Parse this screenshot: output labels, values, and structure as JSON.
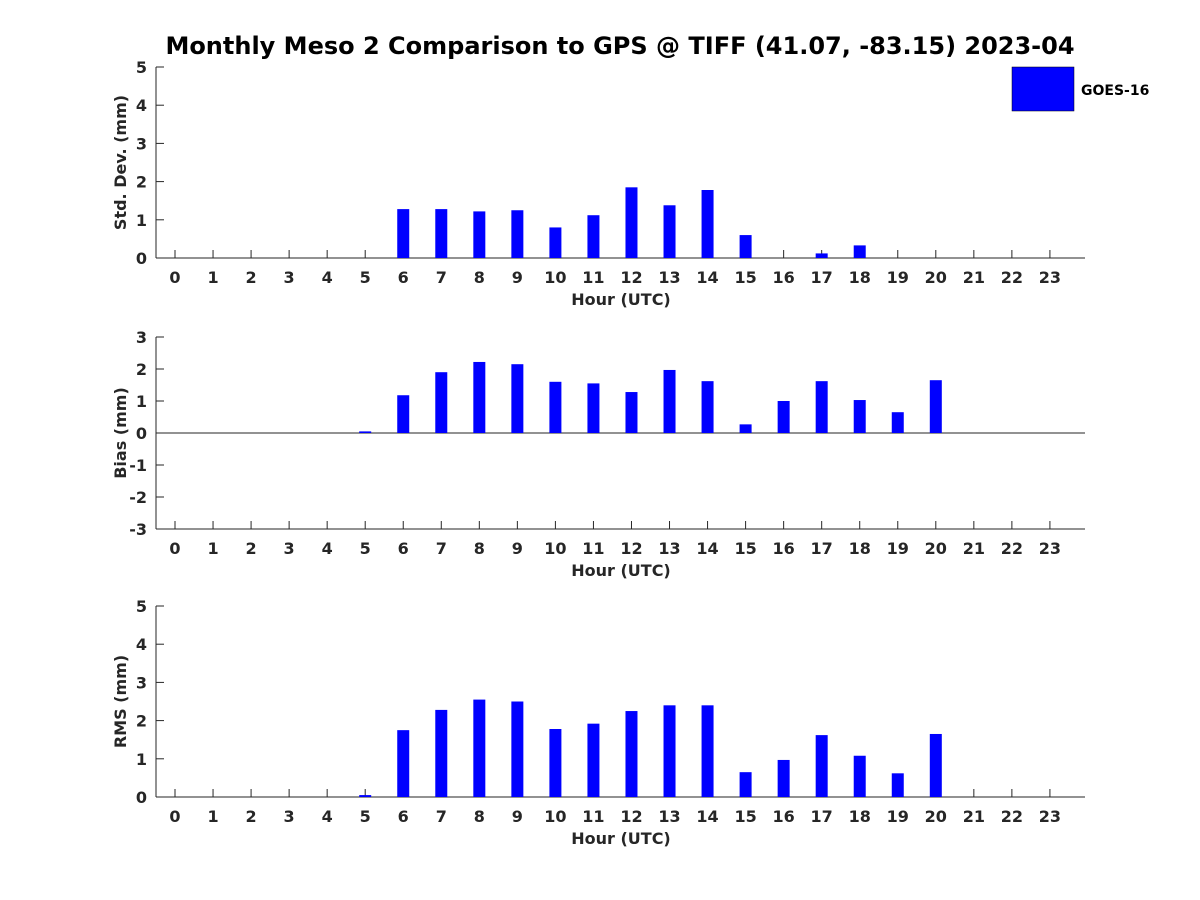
{
  "title": "Monthly Meso 2 Comparison to GPS @ TIFF (41.07, -83.15) 2023-04",
  "legend": {
    "label": "GOES-16",
    "color": "#0000ff"
  },
  "chart_data": [
    {
      "type": "bar",
      "xlabel": "Hour (UTC)",
      "ylabel": "Std. Dev. (mm)",
      "ylim": [
        0,
        5
      ],
      "yticks": [
        0,
        1,
        2,
        3,
        4,
        5
      ],
      "categories": [
        "0",
        "1",
        "2",
        "3",
        "4",
        "5",
        "6",
        "7",
        "8",
        "9",
        "10",
        "11",
        "12",
        "13",
        "14",
        "15",
        "16",
        "17",
        "18",
        "19",
        "20",
        "21",
        "22",
        "23"
      ],
      "series": [
        {
          "name": "GOES-16",
          "color": "#0000ff",
          "values": [
            null,
            null,
            null,
            null,
            null,
            null,
            1.28,
            1.28,
            1.22,
            1.25,
            0.8,
            1.12,
            1.85,
            1.38,
            1.78,
            0.6,
            null,
            0.12,
            0.33,
            null,
            null,
            null,
            null,
            null
          ]
        }
      ]
    },
    {
      "type": "bar",
      "xlabel": "Hour (UTC)",
      "ylabel": "Bias (mm)",
      "ylim": [
        -3,
        3
      ],
      "yticks": [
        -3,
        -2,
        -1,
        0,
        1,
        2,
        3
      ],
      "categories": [
        "0",
        "1",
        "2",
        "3",
        "4",
        "5",
        "6",
        "7",
        "8",
        "9",
        "10",
        "11",
        "12",
        "13",
        "14",
        "15",
        "16",
        "17",
        "18",
        "19",
        "20",
        "21",
        "22",
        "23"
      ],
      "series": [
        {
          "name": "GOES-16",
          "color": "#0000ff",
          "values": [
            null,
            null,
            null,
            null,
            null,
            0.05,
            1.18,
            1.9,
            2.22,
            2.15,
            1.6,
            1.55,
            1.28,
            1.97,
            1.62,
            0.27,
            1.0,
            1.62,
            1.03,
            0.65,
            1.65,
            null,
            null,
            null
          ]
        }
      ]
    },
    {
      "type": "bar",
      "xlabel": "Hour (UTC)",
      "ylabel": "RMS (mm)",
      "ylim": [
        0,
        5
      ],
      "yticks": [
        0,
        1,
        2,
        3,
        4,
        5
      ],
      "categories": [
        "0",
        "1",
        "2",
        "3",
        "4",
        "5",
        "6",
        "7",
        "8",
        "9",
        "10",
        "11",
        "12",
        "13",
        "14",
        "15",
        "16",
        "17",
        "18",
        "19",
        "20",
        "21",
        "22",
        "23"
      ],
      "series": [
        {
          "name": "GOES-16",
          "color": "#0000ff",
          "values": [
            null,
            null,
            null,
            null,
            null,
            0.05,
            1.75,
            2.28,
            2.55,
            2.5,
            1.78,
            1.92,
            2.25,
            2.4,
            2.4,
            0.65,
            0.97,
            1.62,
            1.08,
            0.62,
            1.65,
            null,
            null,
            null
          ]
        }
      ]
    }
  ]
}
